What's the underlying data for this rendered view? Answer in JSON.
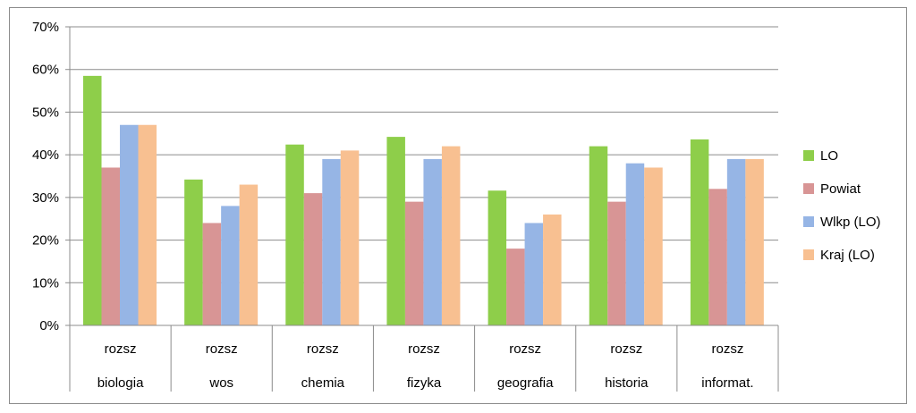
{
  "chart_data": {
    "type": "bar",
    "categories": [
      [
        "rozsz",
        "biologia"
      ],
      [
        "rozsz",
        "wos"
      ],
      [
        "rozsz",
        "chemia"
      ],
      [
        "rozsz",
        "fizyka"
      ],
      [
        "rozsz",
        "geografia"
      ],
      [
        "rozsz",
        "historia"
      ],
      [
        "rozsz",
        "informat."
      ]
    ],
    "series": [
      {
        "name": "LO",
        "color": "#8ece4a",
        "values": [
          58.5,
          34.2,
          42.4,
          44.2,
          31.6,
          42.0,
          43.6
        ]
      },
      {
        "name": "Powiat",
        "color": "#d89595",
        "values": [
          37,
          24,
          31,
          29,
          18,
          29,
          32
        ]
      },
      {
        "name": "Wlkp (LO)",
        "color": "#96b5e5",
        "values": [
          47,
          28,
          39,
          39,
          24,
          38,
          39
        ]
      },
      {
        "name": "Kraj (LO)",
        "color": "#f8c091",
        "values": [
          47,
          33,
          41,
          42,
          26,
          37,
          39
        ]
      }
    ],
    "y_ticks": [
      "0%",
      "10%",
      "20%",
      "30%",
      "40%",
      "50%",
      "60%",
      "70%"
    ],
    "ylim": [
      0,
      70
    ],
    "y_unit": "%",
    "grid": true,
    "legend_position": "right"
  }
}
